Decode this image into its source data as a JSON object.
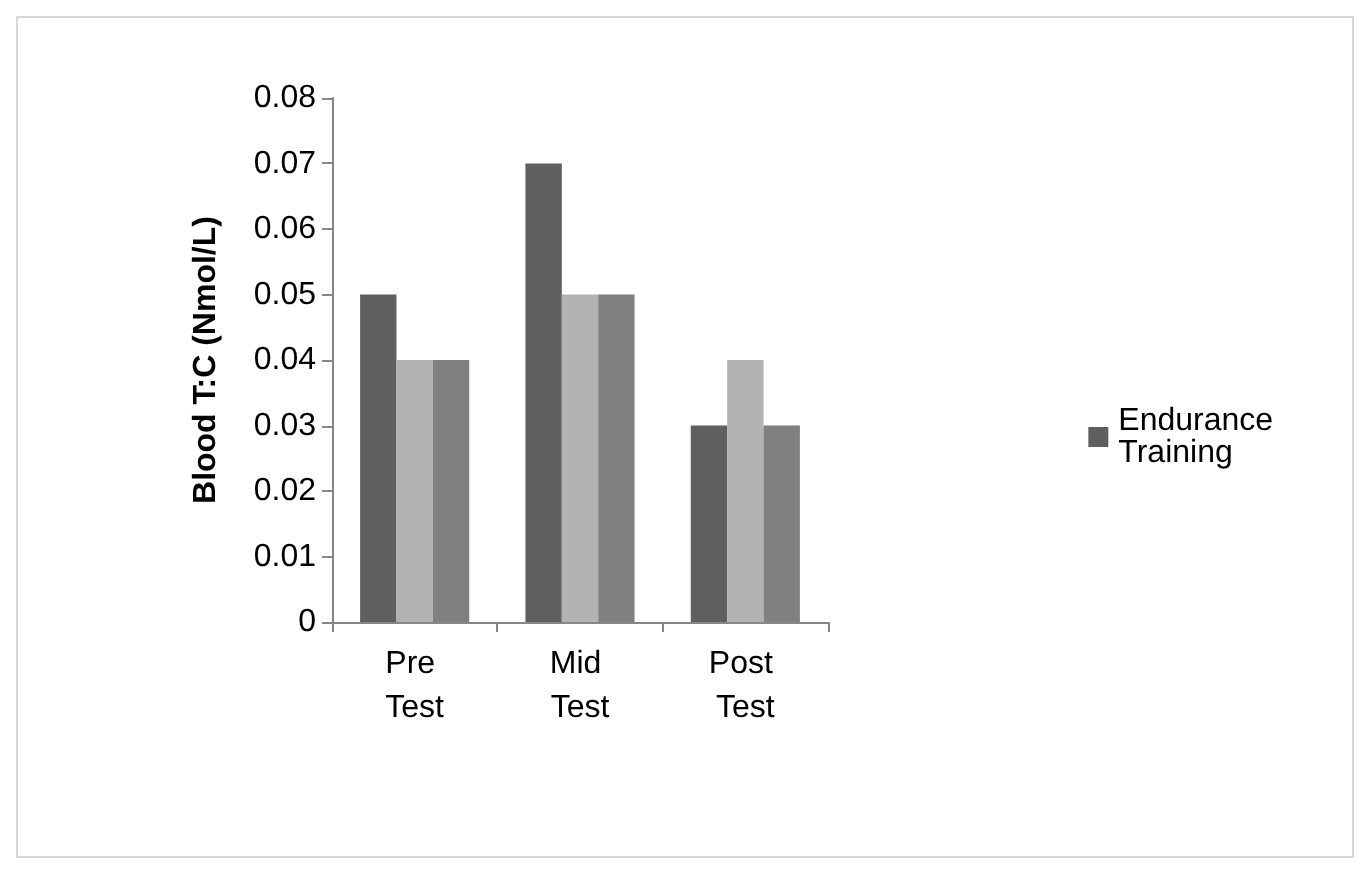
{
  "chart_data": {
    "type": "bar",
    "ylabel": "Blood T:C (Nmol/L)",
    "categories": [
      "Pre Test",
      "Mid Test",
      "Post Test"
    ],
    "series": [
      {
        "name": "Endurance Training",
        "color": "#5f5f5f",
        "values": [
          0.05,
          0.07,
          0.03
        ]
      },
      {
        "color": "#b2b2b2",
        "values": [
          0.04,
          0.05,
          0.04
        ]
      },
      {
        "color": "#808080",
        "values": [
          0.04,
          0.05,
          0.03
        ]
      }
    ],
    "ylim": [
      0,
      0.08
    ],
    "yticks": [
      0,
      0.01,
      0.02,
      0.03,
      0.04,
      0.05,
      0.06,
      0.07,
      0.08
    ],
    "grid": false,
    "legend": "right"
  }
}
